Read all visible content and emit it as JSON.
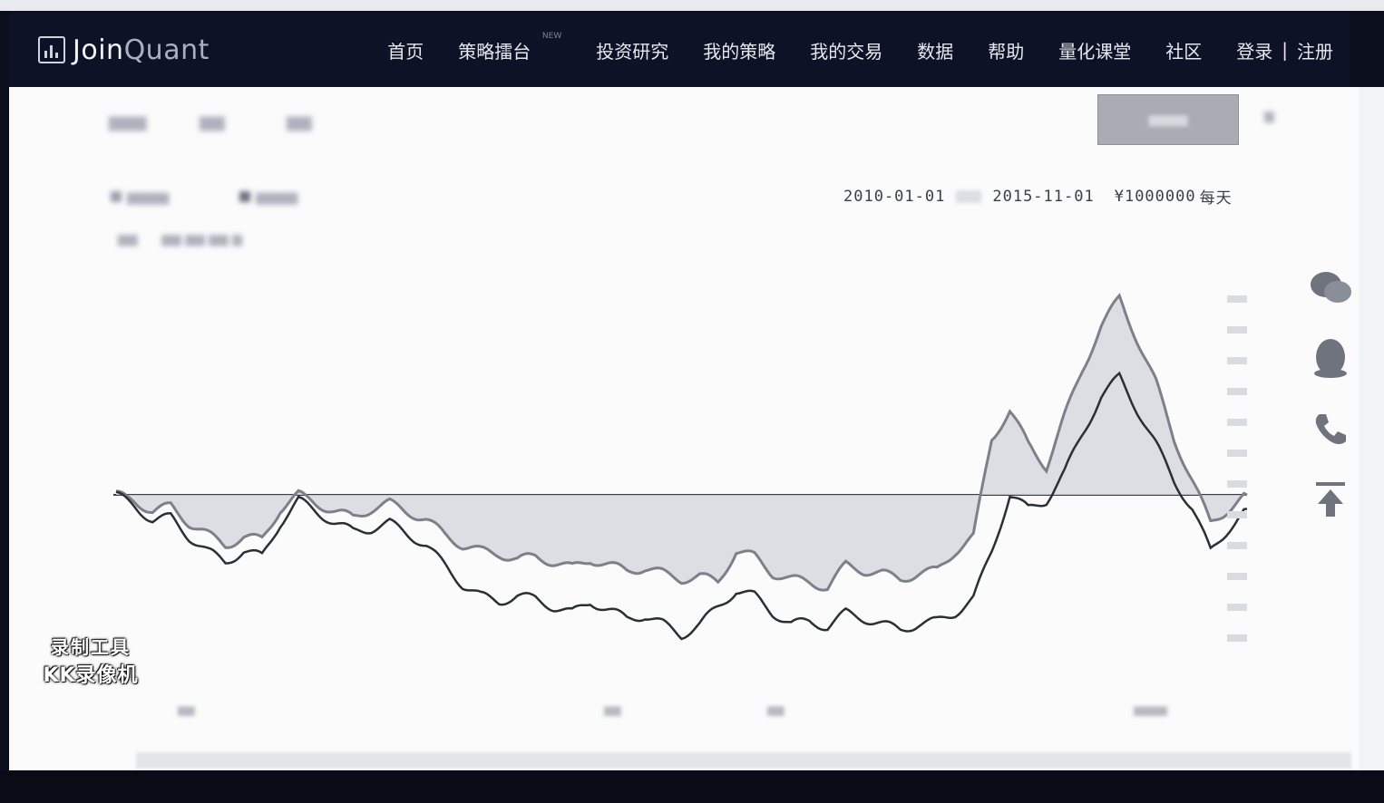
{
  "brand": {
    "name_part1": "Join",
    "name_part2": "Quant",
    "logo_icon": "bar-chart-logo-icon"
  },
  "nav": {
    "items": [
      {
        "label": "首页"
      },
      {
        "label": "策略擂台",
        "badge": "NEW"
      },
      {
        "label": "投资研究"
      },
      {
        "label": "我的策略"
      },
      {
        "label": "我的交易"
      },
      {
        "label": "数据"
      },
      {
        "label": "帮助"
      },
      {
        "label": "量化课堂"
      },
      {
        "label": "社区"
      }
    ],
    "login": "登录",
    "separator": "|",
    "register": "注册"
  },
  "backtest": {
    "start_date": "2010-01-01",
    "end_date": "2015-11-01",
    "capital": "¥1000000",
    "frequency": "每天"
  },
  "colors": {
    "navbar_bg": "#0e1226",
    "strategy_line": "#7d808a",
    "benchmark_line": "#2b2e36",
    "fill": "#d6d8de"
  },
  "side_icons": [
    "wechat-icon",
    "qq-icon",
    "phone-icon",
    "back-to-top-icon"
  ],
  "watermark": {
    "line1": "录制工具",
    "line2": "KK录像机"
  },
  "chart_data": {
    "type": "line",
    "x_range": [
      "2010-01-01",
      "2015-11-01"
    ],
    "series": [
      {
        "values": [
          0,
          -2,
          -6,
          -4,
          -10,
          -14,
          -18,
          -15,
          -16,
          -5,
          0,
          -3,
          -6,
          -8,
          -5,
          -3,
          -6,
          -9,
          -14,
          -18,
          -20,
          -21,
          -23,
          -22,
          -24,
          -26,
          -23,
          -25,
          -27,
          -26,
          -28,
          -30,
          -29,
          -31,
          -20,
          -22,
          -28,
          -30,
          -31,
          -33,
          -25,
          -27,
          -28,
          -30,
          -28,
          -27,
          -20,
          -15,
          20,
          30,
          18,
          10,
          28,
          45,
          60,
          70,
          55,
          40,
          20,
          5,
          -10,
          -5,
          0
        ]
      },
      {
        "values": [
          0,
          -4,
          -9,
          -8,
          -15,
          -20,
          -24,
          -20,
          -22,
          -10,
          -2,
          -6,
          -10,
          -13,
          -12,
          -10,
          -14,
          -18,
          -25,
          -32,
          -36,
          -38,
          -36,
          -37,
          -40,
          -42,
          -38,
          -41,
          -44,
          -43,
          -46,
          -50,
          -46,
          -40,
          -34,
          -36,
          -42,
          -46,
          -45,
          -47,
          -42,
          -44,
          -46,
          -48,
          -46,
          -45,
          -42,
          -37,
          -20,
          0,
          -5,
          -2,
          8,
          22,
          35,
          42,
          30,
          18,
          5,
          -5,
          -20,
          -12,
          -5
        ]
      }
    ]
  }
}
